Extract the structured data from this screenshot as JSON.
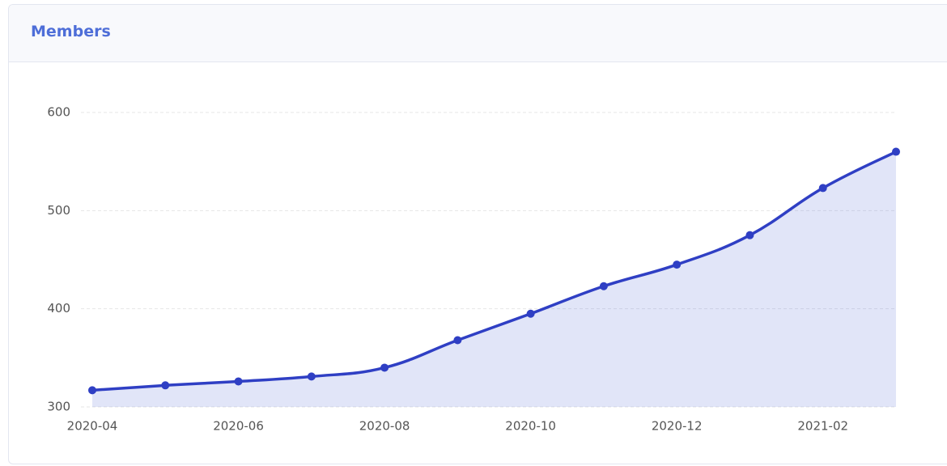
{
  "header": {
    "title": "Members"
  },
  "chart_data": {
    "type": "line",
    "categories": [
      "2020-04",
      null,
      "2020-06",
      null,
      "2020-08",
      null,
      "2020-10",
      null,
      "2020-12",
      null,
      "2021-02",
      null
    ],
    "series": [
      {
        "name": "Members",
        "color": "#2f3fc4",
        "values": [
          317,
          322,
          326,
          331,
          340,
          368,
          395,
          423,
          445,
          475,
          523,
          560
        ]
      }
    ],
    "ylim": [
      300,
      630
    ],
    "yticks": [
      300,
      400,
      500,
      600
    ],
    "grid": true,
    "area": true
  }
}
